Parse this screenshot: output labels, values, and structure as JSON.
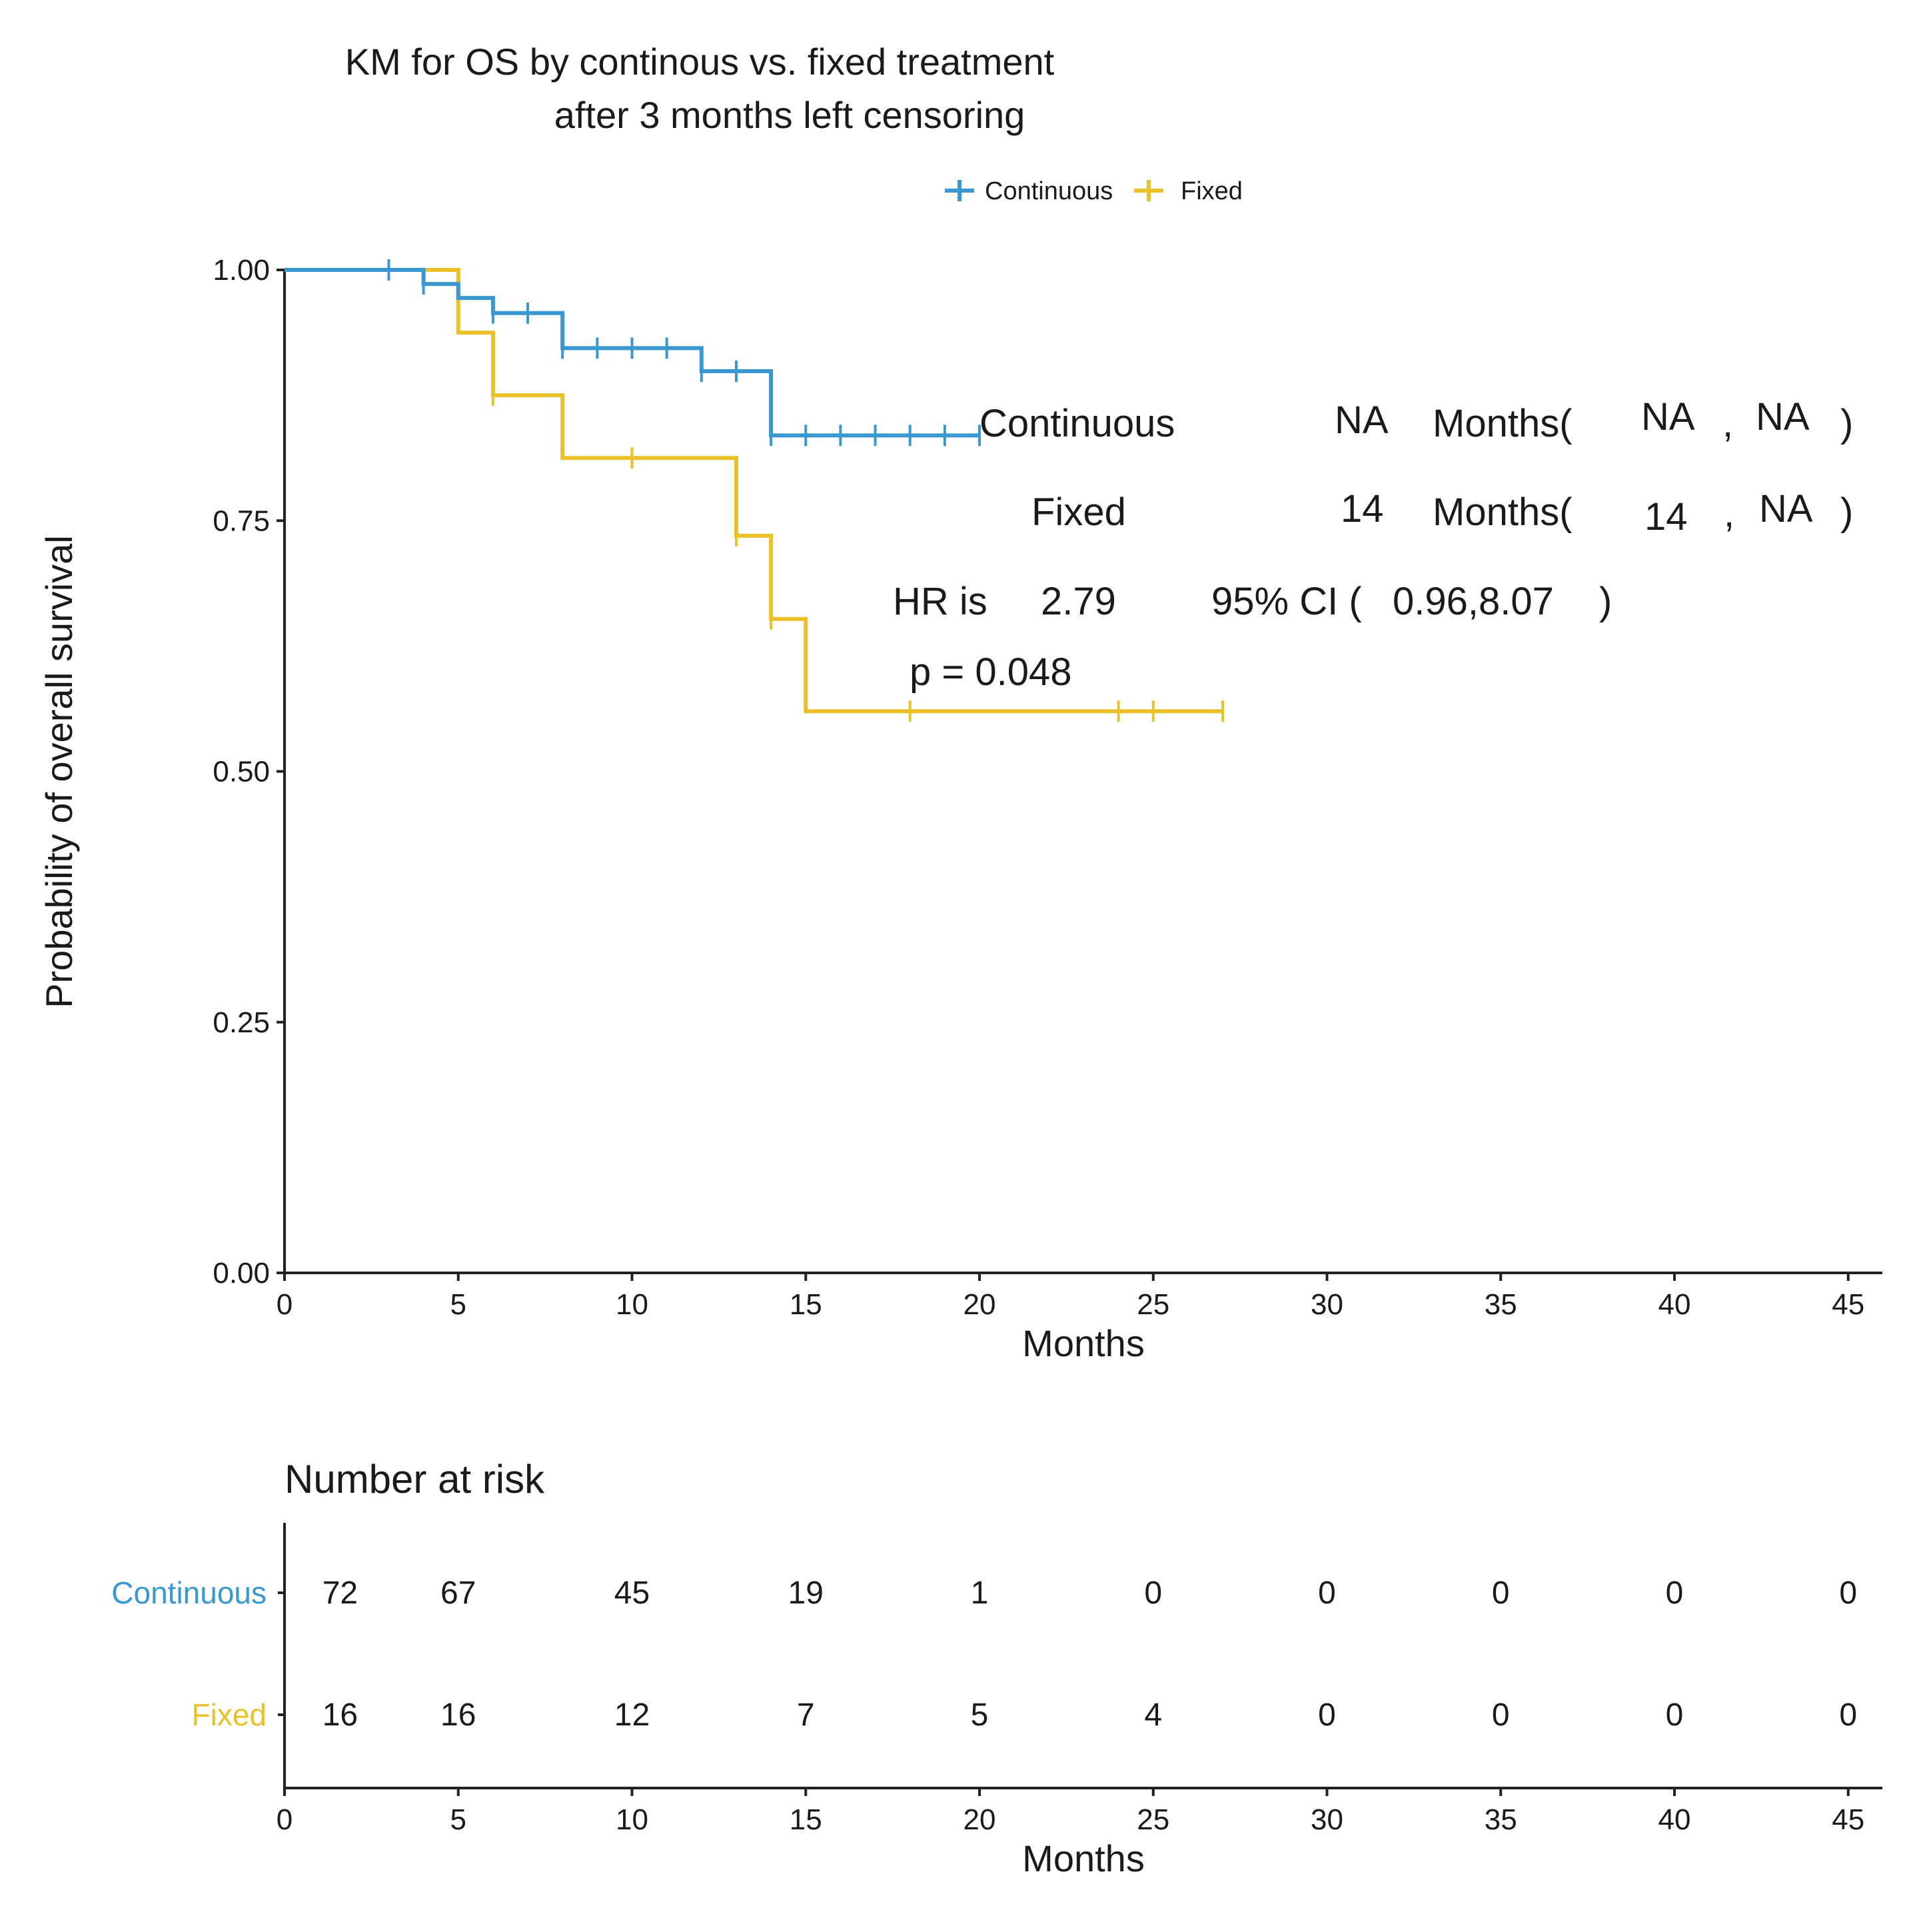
{
  "chart_data": {
    "type": "line",
    "subtype": "kaplan-meier",
    "title_lines": [
      "KM for OS by continous vs. fixed treatment",
      "after 3 months left censoring"
    ],
    "xlabel": "Months",
    "ylabel": "Probability of overall survival",
    "xlim": [
      0,
      46
    ],
    "ylim": [
      0,
      1
    ],
    "x_ticks": [
      0,
      5,
      10,
      15,
      20,
      25,
      30,
      35,
      40,
      45
    ],
    "y_ticks": [
      0,
      0.25,
      0.5,
      0.75,
      1.0
    ],
    "y_tick_labels": [
      "0.00",
      "0.25",
      "0.50",
      "0.75",
      "1.00"
    ],
    "grid": false,
    "legend_position": "top",
    "series": [
      {
        "name": "Continuous",
        "color": "#3a97d0",
        "steps": [
          [
            0,
            1.0
          ],
          [
            4,
            0.986
          ],
          [
            5,
            0.972
          ],
          [
            6,
            0.957
          ],
          [
            8,
            0.922
          ],
          [
            12,
            0.899
          ],
          [
            14,
            0.835
          ]
        ],
        "end_x": 20,
        "censor_x": [
          3,
          4,
          6,
          7,
          8,
          9,
          10,
          11,
          12,
          13,
          14,
          15,
          16,
          17,
          18,
          19,
          20
        ]
      },
      {
        "name": "Fixed",
        "color": "#eac12a",
        "steps": [
          [
            0,
            1.0
          ],
          [
            5,
            0.9375
          ],
          [
            6,
            0.875
          ],
          [
            8,
            0.8125
          ],
          [
            13,
            0.735
          ],
          [
            14,
            0.652
          ],
          [
            15,
            0.56
          ]
        ],
        "end_x": 27,
        "censor_x": [
          6,
          10,
          13,
          14,
          18,
          24,
          25,
          27
        ]
      }
    ],
    "annotations": {
      "row1": {
        "name": "Continuous",
        "median": "NA",
        "unit": "Months(",
        "lo": "NA",
        "sep": ",",
        "hi": "NA",
        "close": ")"
      },
      "row2": {
        "name": "Fixed",
        "median": "14",
        "unit": "Months(",
        "lo": "14",
        "sep": ",",
        "hi": "NA",
        "close": ")"
      },
      "hr_label": "HR is",
      "hr_value": "2.79",
      "ci_label": "95% CI (",
      "ci_values": "0.96,8.07",
      "ci_close": ")",
      "p_text": "p = 0.048"
    },
    "risk_table": {
      "title": "Number at risk",
      "xlabel": "Months",
      "times": [
        0,
        5,
        10,
        15,
        20,
        25,
        30,
        35,
        40,
        45
      ],
      "rows": [
        {
          "name": "Continuous",
          "color": "#3a97d0",
          "values": [
            72,
            67,
            45,
            19,
            1,
            0,
            0,
            0,
            0,
            0
          ]
        },
        {
          "name": "Fixed",
          "color": "#eac12a",
          "values": [
            16,
            16,
            12,
            7,
            5,
            4,
            0,
            0,
            0,
            0
          ]
        }
      ]
    }
  }
}
